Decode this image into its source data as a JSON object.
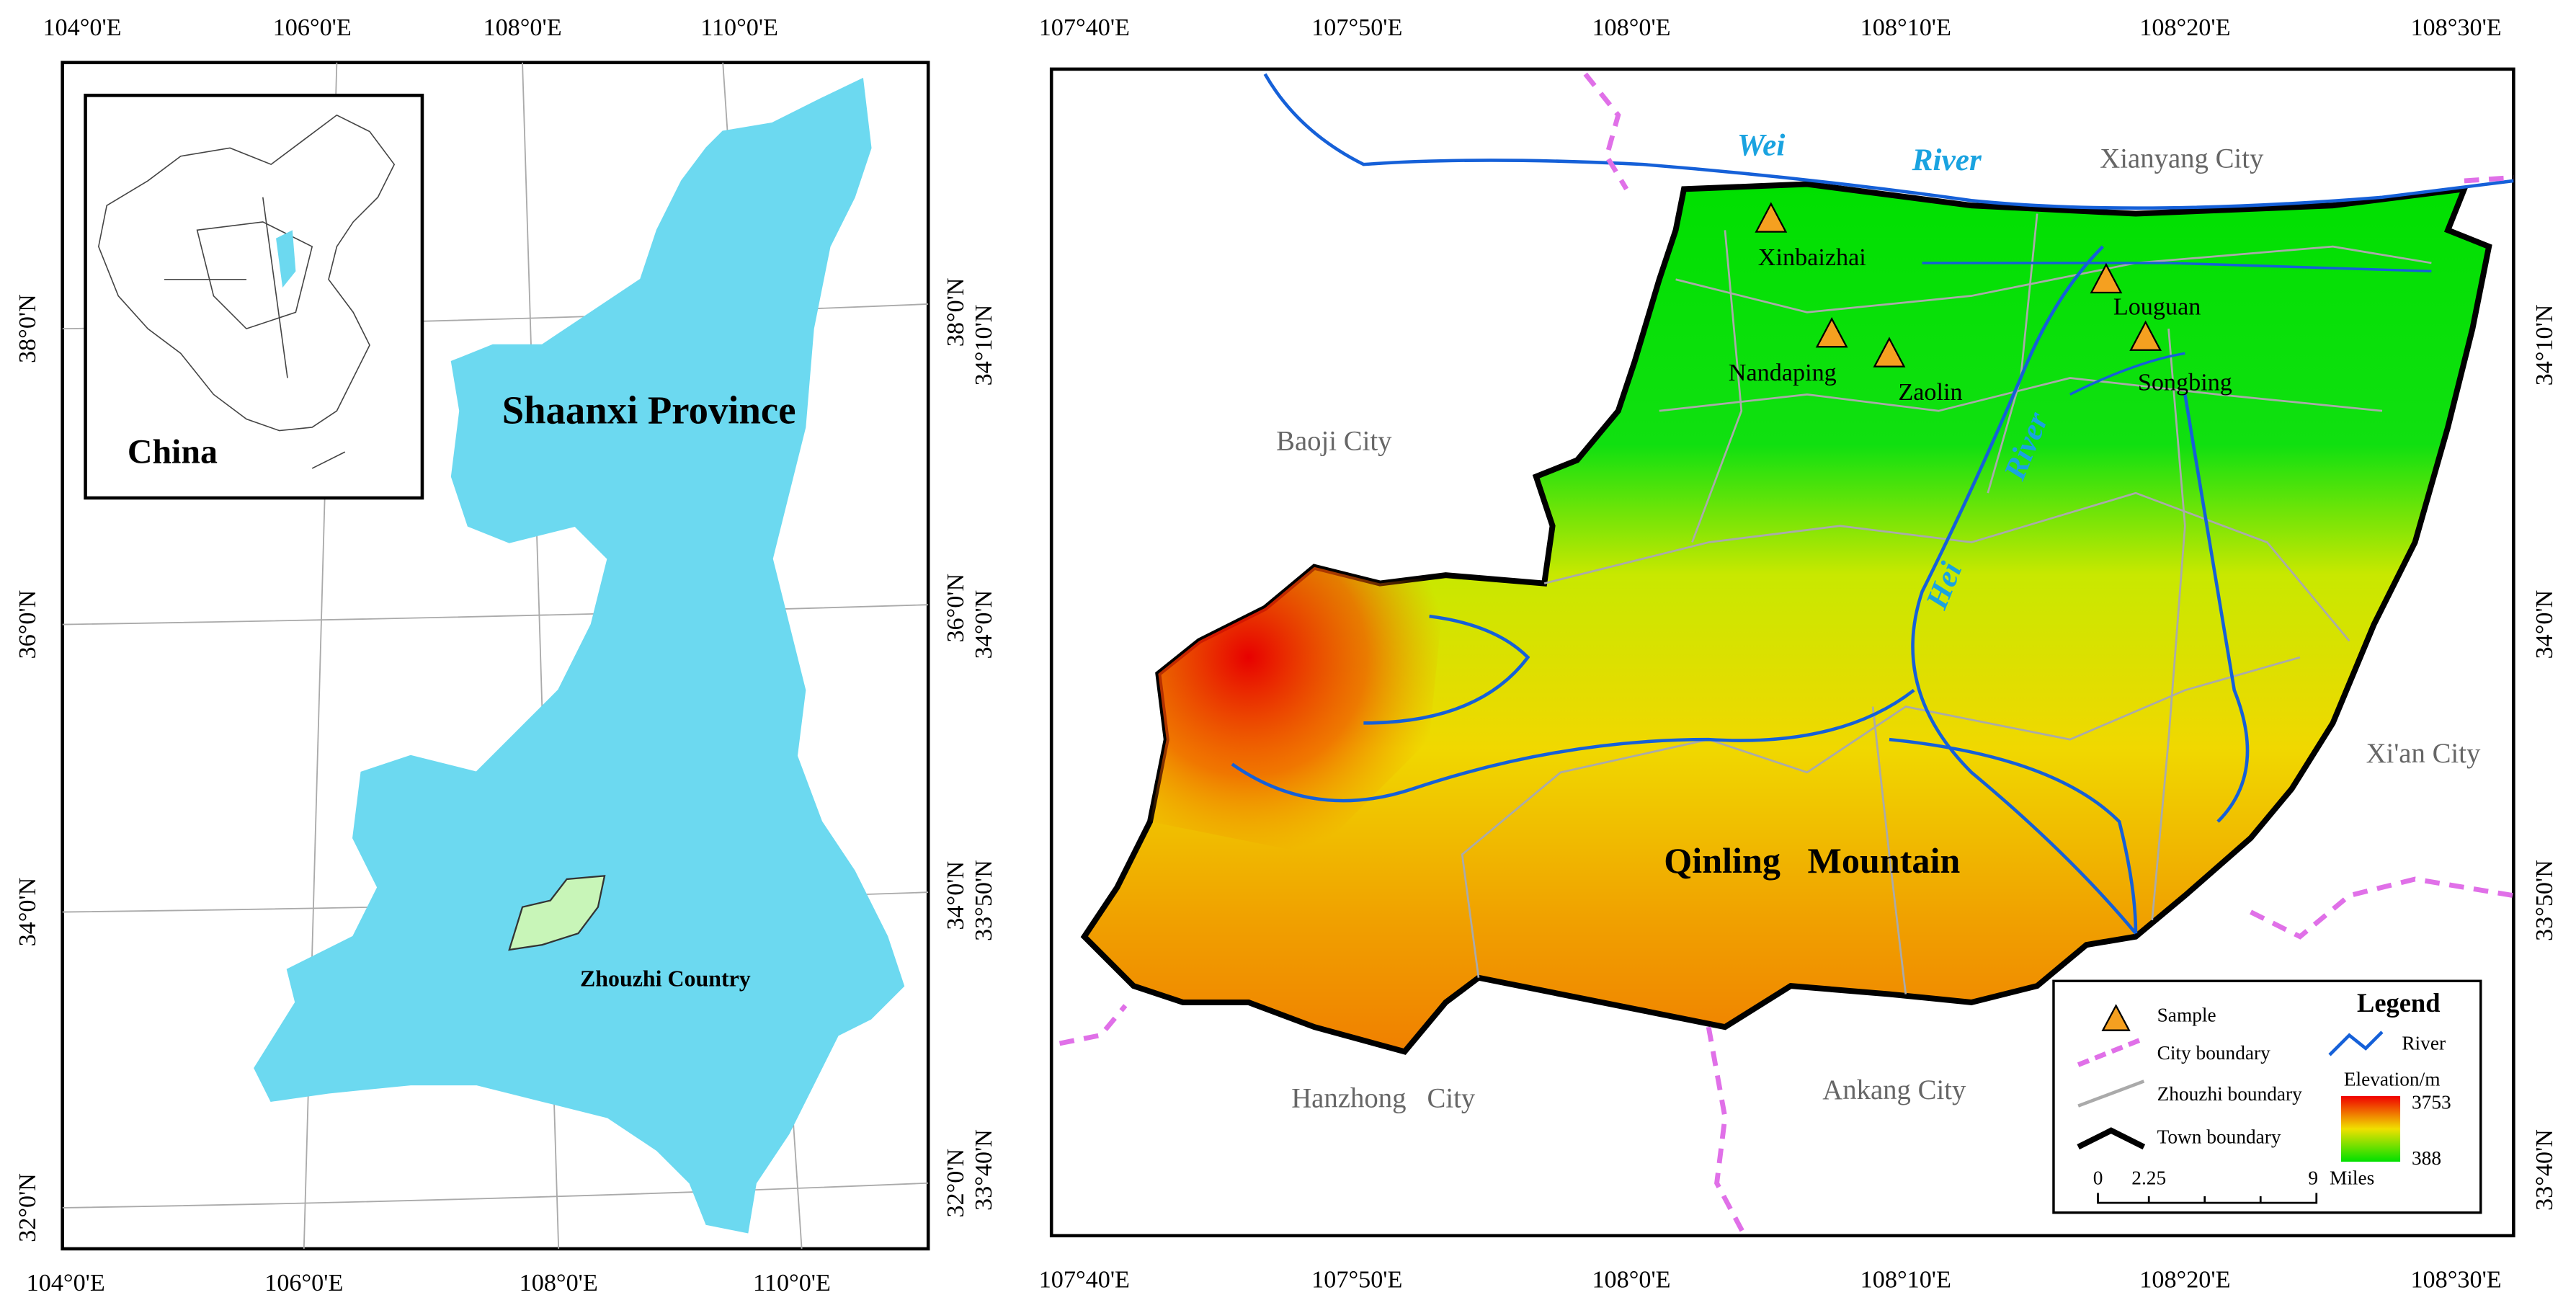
{
  "left_map": {
    "lon_labels": [
      "104°0'E",
      "106°0'E",
      "108°0'E",
      "110°0'E"
    ],
    "lat_labels": [
      "38°0'N",
      "36°0'N",
      "34°0'N",
      "32°0'N"
    ],
    "inset_label": "China",
    "province_label": "Shaanxi Province",
    "county_label": "Zhouzhi Country"
  },
  "right_map": {
    "lon_labels": [
      "107°40'E",
      "107°50'E",
      "108°0'E",
      "108°10'E",
      "108°20'E",
      "108°30'E"
    ],
    "lat_labels": [
      "34°10'N",
      "34°0'N",
      "33°50'N",
      "33°40'N"
    ],
    "cities": [
      "Xianyang City",
      "Baoji City",
      "Xi'an City",
      "Hanzhong   City",
      "Ankang City"
    ],
    "rivers": [
      "Wei",
      "River",
      "Hei",
      "River"
    ],
    "samples": [
      "Xinbaizhai",
      "Nandaping",
      "Zaolin",
      "Louguan",
      "Songbing"
    ],
    "mountain_label": "Qinling   Mountain",
    "legend": {
      "title": "Legend",
      "sample": "Sample",
      "city_boundary": "City boundary",
      "zhouzhi_boundary": "Zhouzhi boundary",
      "town_boundary": "Town boundary",
      "river": "River",
      "elevation_title": "Elevation/m",
      "elevation_max": "3753",
      "elevation_min": "388",
      "scale_labels": [
        "0",
        "2.25",
        "9",
        "Miles"
      ]
    }
  }
}
